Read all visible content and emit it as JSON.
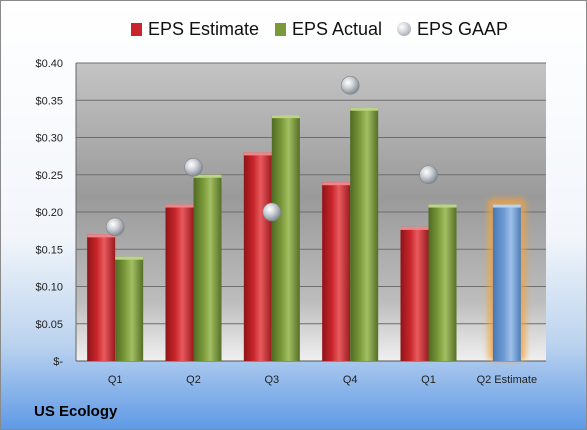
{
  "company": "US Ecology",
  "legend": {
    "estimate": "EPS Estimate",
    "actual": "EPS Actual",
    "gaap": "EPS GAAP"
  },
  "colors": {
    "estimate": "#c8262b",
    "actual": "#7a9a3a",
    "gaap": "#a9adb3",
    "q2_estimate": "#6f9bd4",
    "q2_glow": "#f5a33a"
  },
  "chart_data": {
    "type": "bar",
    "categories": [
      "Q1",
      "Q2",
      "Q3",
      "Q4",
      "Q1",
      "Q2 Estimate"
    ],
    "series": [
      {
        "name": "EPS Estimate",
        "values": [
          0.17,
          0.21,
          0.28,
          0.24,
          0.18,
          null
        ]
      },
      {
        "name": "EPS Actual",
        "values": [
          0.14,
          0.25,
          0.33,
          0.34,
          0.21,
          null
        ]
      },
      {
        "name": "EPS GAAP",
        "values": [
          0.18,
          0.26,
          0.2,
          0.37,
          0.25,
          null
        ]
      },
      {
        "name": "Q2 Estimate",
        "values": [
          null,
          null,
          null,
          null,
          null,
          0.21
        ]
      }
    ],
    "y_ticks": [
      "$-",
      "$0.05",
      "$0.10",
      "$0.15",
      "$0.20",
      "$0.25",
      "$0.30",
      "$0.35",
      "$0.40"
    ],
    "ylim": [
      0,
      0.4
    ],
    "grid": true,
    "legend_position": "top"
  }
}
